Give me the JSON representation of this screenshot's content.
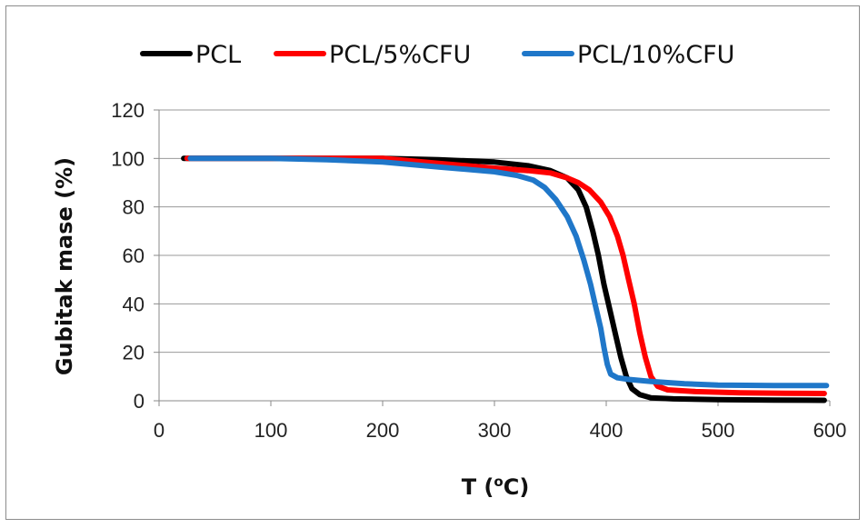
{
  "chart_data": {
    "type": "line",
    "title": "",
    "xlabel": "T (oC)",
    "xlabel_parts": {
      "main": "T (",
      "sup": "o",
      "tail": "C)"
    },
    "ylabel": "Gubitak mase (%)",
    "xlim": [
      0,
      600
    ],
    "ylim": [
      0,
      120
    ],
    "xticks": [
      0,
      100,
      200,
      300,
      400,
      500,
      600
    ],
    "yticks": [
      0,
      20,
      40,
      60,
      80,
      100,
      120
    ],
    "grid": "horizontal",
    "legend_position": "top",
    "series": [
      {
        "name": "PCL",
        "color": "#000000",
        "points": [
          [
            22,
            100
          ],
          [
            100,
            100
          ],
          [
            200,
            100
          ],
          [
            250,
            99.5
          ],
          [
            300,
            98.5
          ],
          [
            330,
            97
          ],
          [
            350,
            95
          ],
          [
            365,
            92
          ],
          [
            375,
            87
          ],
          [
            382,
            80
          ],
          [
            388,
            70
          ],
          [
            393,
            60
          ],
          [
            398,
            48
          ],
          [
            403,
            38
          ],
          [
            408,
            28
          ],
          [
            413,
            18
          ],
          [
            418,
            10
          ],
          [
            423,
            5
          ],
          [
            430,
            2.5
          ],
          [
            440,
            1.2
          ],
          [
            460,
            0.8
          ],
          [
            500,
            0.5
          ],
          [
            550,
            0.3
          ],
          [
            595,
            0.2
          ]
        ]
      },
      {
        "name": "PCL/5%CFU",
        "color": "#ff0000",
        "points": [
          [
            25,
            100
          ],
          [
            100,
            100
          ],
          [
            200,
            100
          ],
          [
            250,
            98
          ],
          [
            300,
            96
          ],
          [
            330,
            95
          ],
          [
            350,
            94
          ],
          [
            365,
            92
          ],
          [
            375,
            90
          ],
          [
            385,
            87
          ],
          [
            395,
            82
          ],
          [
            403,
            76
          ],
          [
            410,
            68
          ],
          [
            415,
            60
          ],
          [
            420,
            50
          ],
          [
            425,
            40
          ],
          [
            430,
            28
          ],
          [
            435,
            18
          ],
          [
            440,
            10
          ],
          [
            446,
            6
          ],
          [
            455,
            4.5
          ],
          [
            480,
            3.8
          ],
          [
            520,
            3.3
          ],
          [
            560,
            3.1
          ],
          [
            595,
            3
          ]
        ]
      },
      {
        "name": "PCL/10%CFU",
        "color": "#1f77c9",
        "points": [
          [
            28,
            100
          ],
          [
            100,
            100
          ],
          [
            150,
            99.5
          ],
          [
            200,
            98.5
          ],
          [
            250,
            96.5
          ],
          [
            300,
            94.5
          ],
          [
            320,
            93
          ],
          [
            335,
            91
          ],
          [
            345,
            88
          ],
          [
            355,
            83
          ],
          [
            365,
            76
          ],
          [
            373,
            68
          ],
          [
            380,
            58
          ],
          [
            386,
            48
          ],
          [
            391,
            38
          ],
          [
            395,
            30
          ],
          [
            398,
            22
          ],
          [
            401,
            15
          ],
          [
            404,
            11
          ],
          [
            410,
            9.5
          ],
          [
            420,
            8.8
          ],
          [
            440,
            8
          ],
          [
            470,
            7
          ],
          [
            500,
            6.5
          ],
          [
            550,
            6.3
          ],
          [
            597,
            6.3
          ]
        ]
      }
    ]
  }
}
